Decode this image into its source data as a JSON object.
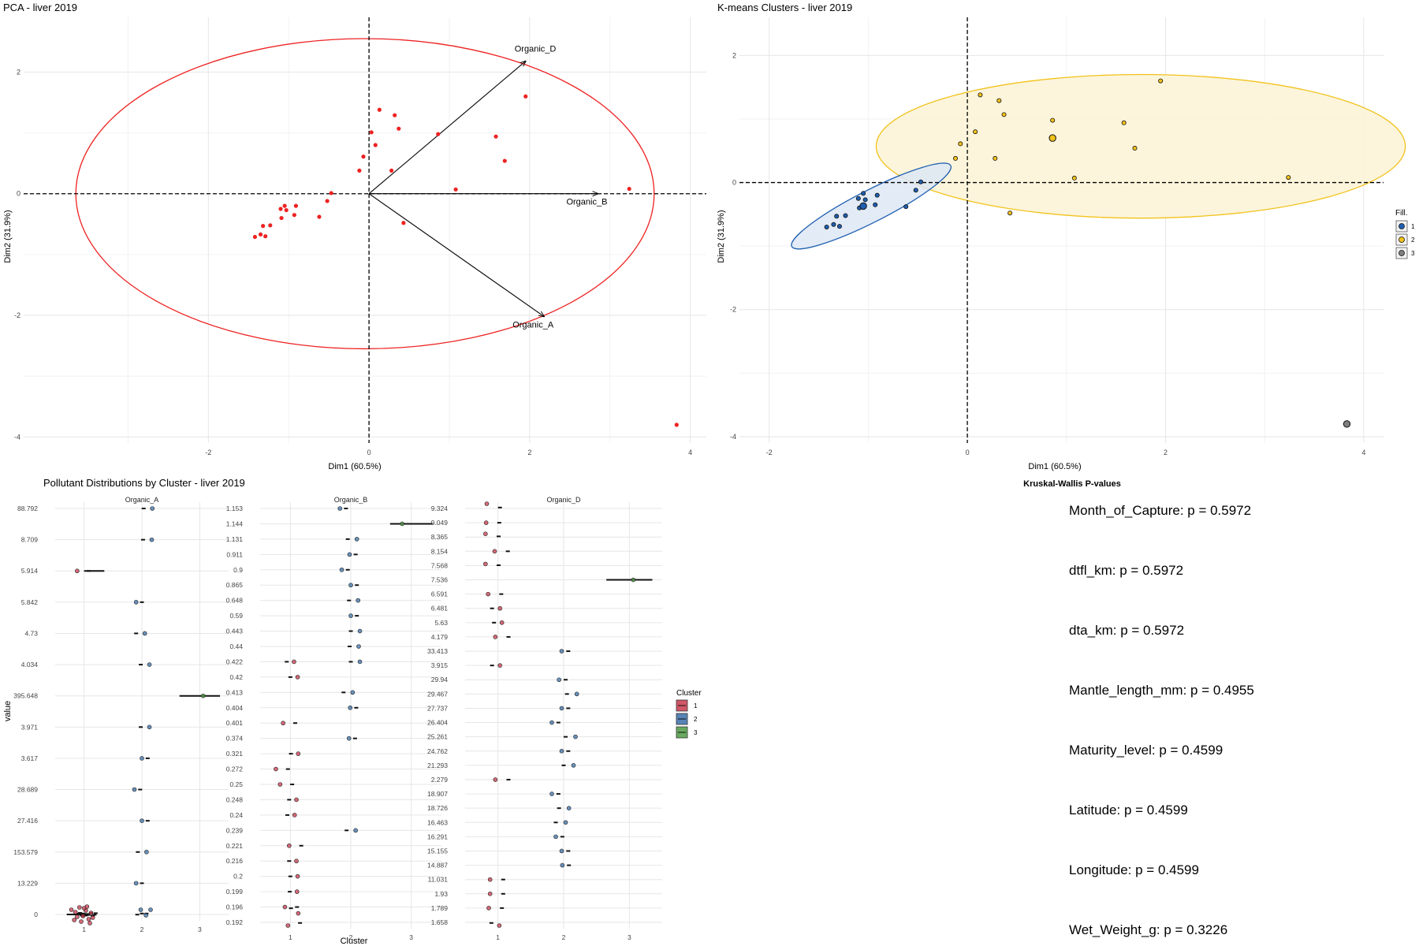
{
  "colors": {
    "pca_points": "#ee2222",
    "cluster1": "#c8384c",
    "cluster2": "#3a6fa8",
    "cluster3": "#4e9a43",
    "kmeans1": "#1f5fb0",
    "kmeans2": "#f2c21b",
    "kmeans3": "#7f7f7f"
  },
  "chart_data": [
    {
      "type": "scatter",
      "title": "PCA - liver 2019",
      "xlabel": "Dim1 (60.5%)",
      "ylabel": "Dim2 (31.9%)",
      "xlim": [
        -4.3,
        4.2
      ],
      "ylim": [
        -4.1,
        2.9
      ],
      "xticks": [
        -2,
        0,
        2,
        4
      ],
      "yticks": [
        -4,
        -2,
        0,
        2
      ],
      "tick_labels_x": [
        "-2",
        "0",
        "2",
        "4"
      ],
      "tick_labels_y": [
        "-4",
        "-2",
        "0",
        "2"
      ],
      "grid": true,
      "points": [
        {
          "x": -1.42,
          "y": -0.71
        },
        {
          "x": -1.35,
          "y": -0.67
        },
        {
          "x": -1.29,
          "y": -0.7
        },
        {
          "x": -1.32,
          "y": -0.53
        },
        {
          "x": -1.23,
          "y": -0.52
        },
        {
          "x": -1.09,
          "y": -0.4
        },
        {
          "x": -1.1,
          "y": -0.25
        },
        {
          "x": -1.05,
          "y": -0.2
        },
        {
          "x": -1.03,
          "y": -0.27
        },
        {
          "x": -0.93,
          "y": -0.35
        },
        {
          "x": -0.91,
          "y": -0.2
        },
        {
          "x": -0.62,
          "y": -0.38
        },
        {
          "x": -0.52,
          "y": -0.12
        },
        {
          "x": -0.47,
          "y": 0.01
        },
        {
          "x": -0.12,
          "y": 0.38
        },
        {
          "x": -0.07,
          "y": 0.61
        },
        {
          "x": 0.03,
          "y": 1.01
        },
        {
          "x": 0.08,
          "y": 0.8
        },
        {
          "x": 0.13,
          "y": 1.38
        },
        {
          "x": 0.28,
          "y": 0.38
        },
        {
          "x": 0.32,
          "y": 1.29
        },
        {
          "x": 0.37,
          "y": 1.07
        },
        {
          "x": 0.43,
          "y": -0.48
        },
        {
          "x": 0.86,
          "y": 0.98
        },
        {
          "x": 1.08,
          "y": 0.07
        },
        {
          "x": 1.58,
          "y": 0.94
        },
        {
          "x": 1.69,
          "y": 0.54
        },
        {
          "x": 1.95,
          "y": 1.6
        },
        {
          "x": 3.24,
          "y": 0.08
        },
        {
          "x": 3.83,
          "y": -3.8
        }
      ],
      "ellipse": {
        "center": [
          -0.05,
          0.0
        ],
        "radii": [
          3.6,
          2.55
        ],
        "color": "#ee2222"
      },
      "arrows": [
        {
          "label": "Organic_D",
          "x": 1.95,
          "y": 2.18
        },
        {
          "label": "Organic_B",
          "x": 2.85,
          "y": 0.0
        },
        {
          "label": "Organic_A",
          "x": 2.18,
          "y": -2.02
        }
      ]
    },
    {
      "type": "scatter",
      "title": "K-means Clusters - liver 2019",
      "xlabel": "Dim1 (60.5%)",
      "ylabel": "Dim2 (31.9%)",
      "xlim": [
        -2.3,
        4.2
      ],
      "ylim": [
        -4.1,
        2.6
      ],
      "xticks": [
        -2,
        0,
        2,
        4
      ],
      "yticks": [
        -4,
        -2,
        0,
        2
      ],
      "tick_labels_x": [
        "-2",
        "0",
        "2",
        "4"
      ],
      "tick_labels_y": [
        "-4",
        "-2",
        "0",
        "2"
      ],
      "grid": true,
      "legend": {
        "title": "Fill.",
        "position": "right",
        "labels": [
          "1",
          "2",
          "3"
        ]
      },
      "series": [
        {
          "name": "1",
          "points": [
            [
              -1.42,
              -0.7
            ],
            [
              -1.35,
              -0.66
            ],
            [
              -1.29,
              -0.69
            ],
            [
              -1.32,
              -0.53
            ],
            [
              -1.23,
              -0.52
            ],
            [
              -1.09,
              -0.4
            ],
            [
              -1.1,
              -0.25
            ],
            [
              -1.05,
              -0.17
            ],
            [
              -1.03,
              -0.27
            ],
            [
              -0.93,
              -0.35
            ],
            [
              -0.91,
              -0.2
            ],
            [
              -0.62,
              -0.38
            ],
            [
              -0.52,
              -0.12
            ],
            [
              -0.47,
              0.01
            ]
          ],
          "centroid": [
            -1.05,
            -0.37
          ]
        },
        {
          "name": "2",
          "points": [
            [
              -0.12,
              0.38
            ],
            [
              -0.07,
              0.61
            ],
            [
              0.08,
              0.8
            ],
            [
              0.13,
              1.38
            ],
            [
              0.32,
              1.29
            ],
            [
              0.37,
              1.07
            ],
            [
              0.28,
              0.38
            ],
            [
              0.43,
              -0.48
            ],
            [
              0.86,
              0.98
            ],
            [
              1.08,
              0.07
            ],
            [
              1.58,
              0.94
            ],
            [
              1.69,
              0.54
            ],
            [
              1.95,
              1.6
            ],
            [
              3.24,
              0.08
            ]
          ],
          "centroid": [
            0.86,
            0.7
          ]
        },
        {
          "name": "3",
          "points": [
            [
              3.83,
              -3.8
            ]
          ],
          "centroid": [
            3.83,
            -3.8
          ]
        }
      ],
      "ellipses": [
        {
          "cluster": "1",
          "center": [
            -0.97,
            -0.37
          ],
          "rx": 0.9,
          "ry": 0.25,
          "angle_deg": 27
        },
        {
          "cluster": "2",
          "center": [
            1.75,
            0.57
          ],
          "rx": 2.67,
          "ry": 1.13,
          "angle_deg": 0
        }
      ]
    },
    {
      "type": "scatter",
      "title": "Pollutant Distributions by Cluster - liver 2019",
      "xlabel": "Cluster",
      "ylabel": "value",
      "legend": {
        "title": "Cluster",
        "position": "right",
        "labels": [
          "1",
          "2",
          "3"
        ]
      },
      "panels": [
        {
          "name": "Organic_A",
          "levels": [
            "88.792",
            "8.709",
            "5.914",
            "5.842",
            "4.73",
            "4.034",
            "395.648",
            "3.971",
            "3.617",
            "28.689",
            "27.416",
            "153.579",
            "13.229",
            "0"
          ],
          "points": [
            {
              "c": 2,
              "x": 2.18,
              "v": "88.792"
            },
            {
              "c": 2,
              "x": 2.17,
              "v": "8.709"
            },
            {
              "c": 1,
              "x": 0.88,
              "v": "5.914"
            },
            {
              "c": 2,
              "x": 1.9,
              "v": "5.842"
            },
            {
              "c": 2,
              "x": 2.05,
              "v": "4.73"
            },
            {
              "c": 2,
              "x": 2.13,
              "v": "4.034"
            },
            {
              "c": 3,
              "x": 3.06,
              "v": "395.648"
            },
            {
              "c": 2,
              "x": 2.13,
              "v": "3.971"
            },
            {
              "c": 2,
              "x": 2.0,
              "v": "3.617"
            },
            {
              "c": 2,
              "x": 1.87,
              "v": "28.689"
            },
            {
              "c": 2,
              "x": 2.0,
              "v": "27.416"
            },
            {
              "c": 2,
              "x": 2.08,
              "v": "153.579"
            },
            {
              "c": 2,
              "x": 1.9,
              "v": "13.229"
            },
            {
              "c": 1,
              "x": 0.78,
              "v": "0",
              "dy": -6
            },
            {
              "c": 1,
              "x": 0.85,
              "v": "0",
              "dy": -3
            },
            {
              "c": 1,
              "x": 0.92,
              "v": "0",
              "dy": -9
            },
            {
              "c": 1,
              "x": 0.98,
              "v": "0",
              "dy": 2
            },
            {
              "c": 1,
              "x": 1.03,
              "v": "0",
              "dy": -5
            },
            {
              "c": 1,
              "x": 1.08,
              "v": "0",
              "dy": 6
            },
            {
              "c": 1,
              "x": 1.12,
              "v": "0",
              "dy": -2
            },
            {
              "c": 1,
              "x": 0.83,
              "v": "0",
              "dy": 7
            },
            {
              "c": 1,
              "x": 1.0,
              "v": "0",
              "dy": -8
            },
            {
              "c": 1,
              "x": 0.95,
              "v": "0",
              "dy": 9
            },
            {
              "c": 1,
              "x": 1.15,
              "v": "0",
              "dy": 4
            },
            {
              "c": 1,
              "x": 0.88,
              "v": "0",
              "dy": 3
            },
            {
              "c": 1,
              "x": 1.05,
              "v": "0",
              "dy": -10
            },
            {
              "c": 1,
              "x": 1.1,
              "v": "0",
              "dy": 11
            },
            {
              "c": 2,
              "x": 1.98,
              "v": "0",
              "dy": -6
            },
            {
              "c": 2,
              "x": 2.15,
              "v": "0",
              "dy": -6
            },
            {
              "c": 2,
              "x": 2.07,
              "v": "0",
              "dy": 1
            }
          ],
          "segments": [
            {
              "c": 1,
              "x1": 0.7,
              "x2": 1.0,
              "v": "0"
            },
            {
              "c": 1,
              "x1": 1.0,
              "x2": 1.35,
              "v": "5.914"
            },
            {
              "c": 3,
              "x1": 2.65,
              "x2": 3.35,
              "v": "395.648"
            }
          ]
        },
        {
          "name": "Organic_B",
          "levels": [
            "1.153",
            "1.144",
            "1.131",
            "0.911",
            "0.9",
            "0.865",
            "0.648",
            "0.59",
            "0.443",
            "0.44",
            "0.422",
            "0.42",
            "0.413",
            "0.404",
            "0.401",
            "0.374",
            "0.321",
            "0.272",
            "0.25",
            "0.248",
            "0.24",
            "0.239",
            "0.221",
            "0.216",
            "0.2",
            "0.199",
            "0.196",
            "0.192"
          ],
          "points": [
            {
              "c": 2,
              "x": 1.82,
              "v": "1.153"
            },
            {
              "c": 3,
              "x": 2.85,
              "v": "1.144"
            },
            {
              "c": 2,
              "x": 2.1,
              "v": "1.131"
            },
            {
              "c": 2,
              "x": 1.98,
              "v": "0.911"
            },
            {
              "c": 2,
              "x": 1.85,
              "v": "0.9"
            },
            {
              "c": 2,
              "x": 2.0,
              "v": "0.865"
            },
            {
              "c": 2,
              "x": 2.12,
              "v": "0.648"
            },
            {
              "c": 2,
              "x": 2.0,
              "v": "0.59"
            },
            {
              "c": 2,
              "x": 2.15,
              "v": "0.443"
            },
            {
              "c": 2,
              "x": 2.13,
              "v": "0.44"
            },
            {
              "c": 1,
              "x": 1.06,
              "v": "0.422"
            },
            {
              "c": 2,
              "x": 2.15,
              "v": "0.422"
            },
            {
              "c": 1,
              "x": 1.12,
              "v": "0.42"
            },
            {
              "c": 2,
              "x": 2.03,
              "v": "0.413"
            },
            {
              "c": 2,
              "x": 1.99,
              "v": "0.404"
            },
            {
              "c": 1,
              "x": 0.88,
              "v": "0.401"
            },
            {
              "c": 2,
              "x": 1.97,
              "v": "0.374"
            },
            {
              "c": 1,
              "x": 1.13,
              "v": "0.321"
            },
            {
              "c": 1,
              "x": 0.76,
              "v": "0.272"
            },
            {
              "c": 1,
              "x": 0.83,
              "v": "0.25"
            },
            {
              "c": 1,
              "x": 1.1,
              "v": "0.248"
            },
            {
              "c": 1,
              "x": 1.07,
              "v": "0.24"
            },
            {
              "c": 2,
              "x": 2.08,
              "v": "0.239"
            },
            {
              "c": 1,
              "x": 0.98,
              "v": "0.221"
            },
            {
              "c": 1,
              "x": 1.1,
              "v": "0.216"
            },
            {
              "c": 1,
              "x": 1.12,
              "v": "0.2"
            },
            {
              "c": 1,
              "x": 1.11,
              "v": "0.199"
            },
            {
              "c": 1,
              "x": 0.91,
              "v": "0.196"
            },
            {
              "c": 1,
              "x": 1.13,
              "v": "0.196",
              "dy": 8
            },
            {
              "c": 1,
              "x": 0.96,
              "v": "0.192",
              "dy": 4
            }
          ],
          "segments": [
            {
              "c": 3,
              "x1": 2.65,
              "x2": 3.35,
              "v": "1.144"
            }
          ]
        },
        {
          "name": "Organic_D",
          "levels": [
            "9.324",
            "9.049",
            "8.365",
            "8.154",
            "7.568",
            "7.536",
            "6.591",
            "6.481",
            "5.63",
            "4.179",
            "33.413",
            "3.915",
            "29.94",
            "29.467",
            "27.737",
            "26.404",
            "25.261",
            "24.762",
            "21.293",
            "2.279",
            "18.907",
            "18.726",
            "16.463",
            "16.291",
            "15.155",
            "14.887",
            "11.031",
            "1.93",
            "1.789",
            "1.658"
          ],
          "points": [
            {
              "c": 1,
              "x": 0.83,
              "v": "9.324",
              "dy": -6
            },
            {
              "c": 1,
              "x": 0.82,
              "v": "9.049"
            },
            {
              "c": 1,
              "x": 0.81,
              "v": "8.365",
              "dy": -4
            },
            {
              "c": 1,
              "x": 0.95,
              "v": "8.154"
            },
            {
              "c": 1,
              "x": 0.81,
              "v": "7.568",
              "dy": -2
            },
            {
              "c": 3,
              "x": 3.06,
              "v": "7.536"
            },
            {
              "c": 1,
              "x": 0.85,
              "v": "6.591"
            },
            {
              "c": 1,
              "x": 1.03,
              "v": "6.481"
            },
            {
              "c": 1,
              "x": 1.06,
              "v": "5.63"
            },
            {
              "c": 1,
              "x": 0.96,
              "v": "4.179"
            },
            {
              "c": 2,
              "x": 1.97,
              "v": "33.413"
            },
            {
              "c": 1,
              "x": 1.03,
              "v": "3.915"
            },
            {
              "c": 2,
              "x": 1.93,
              "v": "29.94"
            },
            {
              "c": 2,
              "x": 2.2,
              "v": "29.467"
            },
            {
              "c": 2,
              "x": 1.97,
              "v": "27.737"
            },
            {
              "c": 2,
              "x": 1.82,
              "v": "26.404"
            },
            {
              "c": 2,
              "x": 2.18,
              "v": "25.261"
            },
            {
              "c": 2,
              "x": 1.97,
              "v": "24.762"
            },
            {
              "c": 2,
              "x": 2.15,
              "v": "21.293"
            },
            {
              "c": 1,
              "x": 0.96,
              "v": "2.279"
            },
            {
              "c": 2,
              "x": 1.82,
              "v": "18.907"
            },
            {
              "c": 2,
              "x": 2.08,
              "v": "18.726"
            },
            {
              "c": 2,
              "x": 2.03,
              "v": "16.463"
            },
            {
              "c": 2,
              "x": 1.88,
              "v": "16.291"
            },
            {
              "c": 2,
              "x": 1.97,
              "v": "15.155"
            },
            {
              "c": 2,
              "x": 1.98,
              "v": "14.887"
            },
            {
              "c": 1,
              "x": 0.88,
              "v": "11.031"
            },
            {
              "c": 1,
              "x": 0.88,
              "v": "1.93"
            },
            {
              "c": 1,
              "x": 0.86,
              "v": "1.789"
            },
            {
              "c": 1,
              "x": 1.02,
              "v": "1.658",
              "dy": 4
            }
          ],
          "segments": [
            {
              "c": 3,
              "x1": 2.65,
              "x2": 3.35,
              "v": "7.536"
            }
          ]
        }
      ]
    }
  ],
  "kruskal": {
    "title": "Kruskal-Wallis P-values",
    "lines": [
      "Month_of_Capture: p = 0.5972",
      "dtfl_km: p = 0.5972",
      "dta_km: p = 0.5972",
      "Mantle_length_mm: p = 0.4955",
      "Maturity_level: p = 0.4599",
      "Latitude: p = 0.4599",
      "Longitude: p = 0.4599",
      "Wet_Weight_g: p = 0.3226"
    ]
  }
}
